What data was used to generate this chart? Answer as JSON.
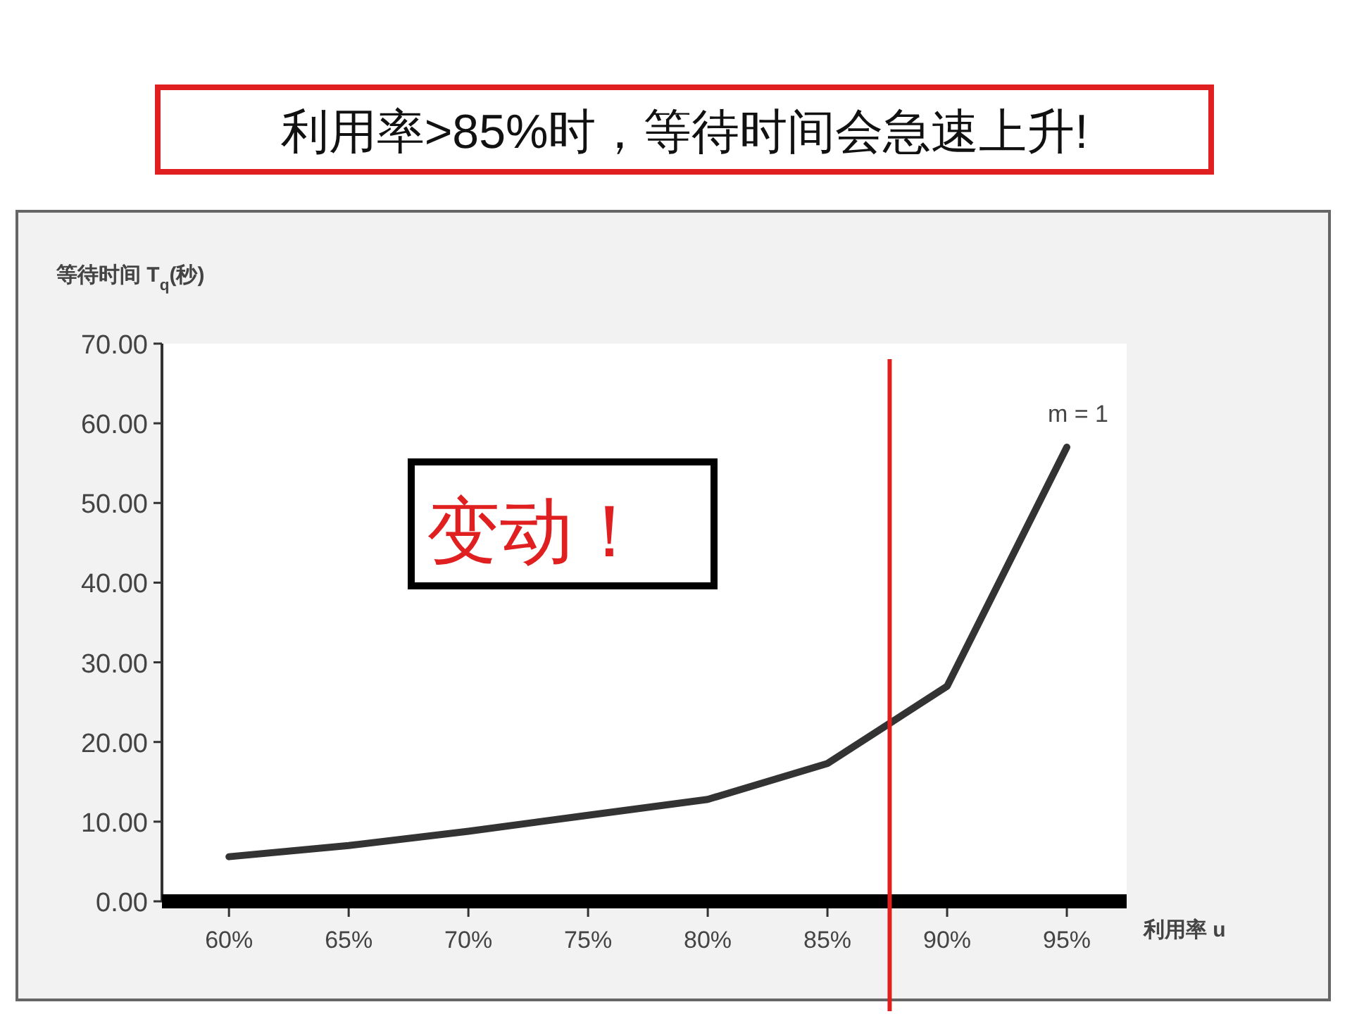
{
  "chart_data": {
    "type": "line",
    "title": "利用率>85%时，等待时间会急速上升!",
    "xlabel": "利用率 u",
    "ylabel": "等待时间 T$_{q}$(秒)",
    "x": [
      60,
      65,
      70,
      75,
      80,
      85,
      90,
      95
    ],
    "series": [
      {
        "name": "m = 1",
        "color": "#333333",
        "values": [
          5.6,
          7.0,
          8.8,
          10.8,
          12.8,
          17.3,
          27.0,
          57.0
        ]
      }
    ],
    "xlim": [
      57.2,
      97.5
    ],
    "xticks": [
      {
        "value": 60,
        "label": "60%"
      },
      {
        "value": 65,
        "label": "65%"
      },
      {
        "value": 70,
        "label": "70%"
      },
      {
        "value": 75,
        "label": "75%"
      },
      {
        "value": 80,
        "label": "80%"
      },
      {
        "value": 85,
        "label": "85%"
      },
      {
        "value": 90,
        "label": "90%"
      },
      {
        "value": 95,
        "label": "95%"
      }
    ],
    "ylim": [
      0,
      70
    ],
    "yticks": [
      {
        "value": 0,
        "label": "0.00"
      },
      {
        "value": 10,
        "label": "10.00"
      },
      {
        "value": 20,
        "label": "20.00"
      },
      {
        "value": 30,
        "label": "30.00"
      },
      {
        "value": 40,
        "label": "40.00"
      },
      {
        "value": 50,
        "label": "50.00"
      },
      {
        "value": 60,
        "label": "60.00"
      },
      {
        "value": 70,
        "label": "70.00"
      }
    ],
    "ref_lines": [
      {
        "axis": "x",
        "value": 87.6,
        "color": "#e02020"
      }
    ],
    "annotations": [
      "变动！"
    ]
  }
}
